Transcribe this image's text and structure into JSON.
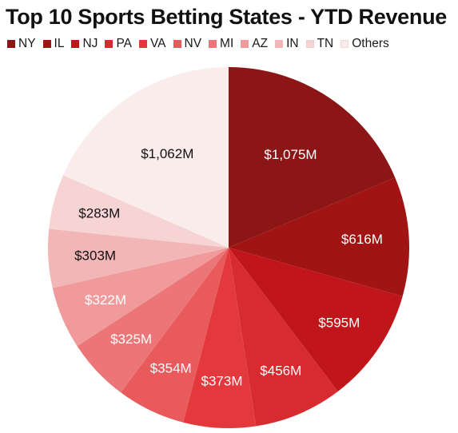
{
  "chart_data": {
    "type": "pie",
    "title": "Top 10 Sports Betting States - YTD Revenue",
    "categories": [
      "NY",
      "IL",
      "NJ",
      "PA",
      "VA",
      "NV",
      "MI",
      "AZ",
      "IN",
      "TN",
      "Others"
    ],
    "values": [
      1075,
      616,
      595,
      456,
      373,
      354,
      325,
      322,
      303,
      283,
      1062
    ],
    "labels": [
      "$1,075M",
      "$616M",
      "$595M",
      "$456M",
      "$373M",
      "$354M",
      "$325M",
      "$322M",
      "$303M",
      "$283M",
      "$1,062M"
    ],
    "colors": [
      "#8c1515",
      "#a11414",
      "#c0161b",
      "#d72b2f",
      "#e3393c",
      "#e85a5c",
      "#ec7577",
      "#f09a9b",
      "#f3b6b7",
      "#f6d4d4",
      "#fbecec"
    ],
    "label_colors": [
      "#ffffff",
      "#ffffff",
      "#ffffff",
      "#ffffff",
      "#ffffff",
      "#ffffff",
      "#ffffff",
      "#ffffff",
      "#111111",
      "#111111",
      "#111111"
    ],
    "start": "12 o'clock",
    "direction": "clockwise",
    "legend_position": "top"
  }
}
